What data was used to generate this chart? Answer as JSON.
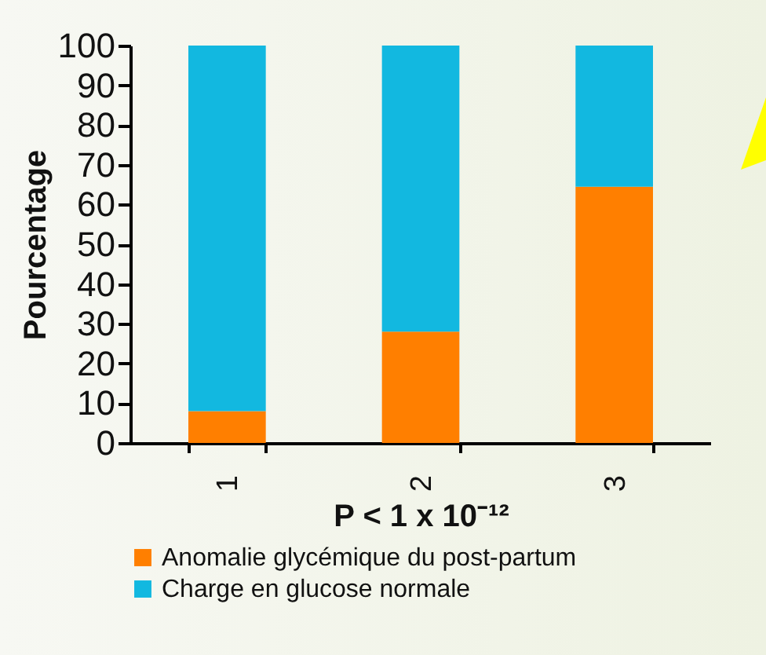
{
  "chart_data": {
    "type": "bar",
    "stacked": true,
    "xlabel": "P < 1 x 10⁻¹²",
    "ylabel": "Pourcentage",
    "categories": [
      "1",
      "2",
      "3"
    ],
    "series": [
      {
        "name": "Anomalie glycémique du post-partum",
        "color": "#ff7f00",
        "values": [
          8,
          28,
          64.5
        ]
      },
      {
        "name": "Charge en glucose normale",
        "color": "#12b8e0",
        "values": [
          92,
          72,
          35.5
        ]
      }
    ],
    "ylim": [
      0,
      100
    ],
    "yticks": [
      0,
      10,
      20,
      30,
      40,
      50,
      60,
      70,
      80,
      90,
      100
    ],
    "grid": false,
    "legend": "bottom"
  }
}
